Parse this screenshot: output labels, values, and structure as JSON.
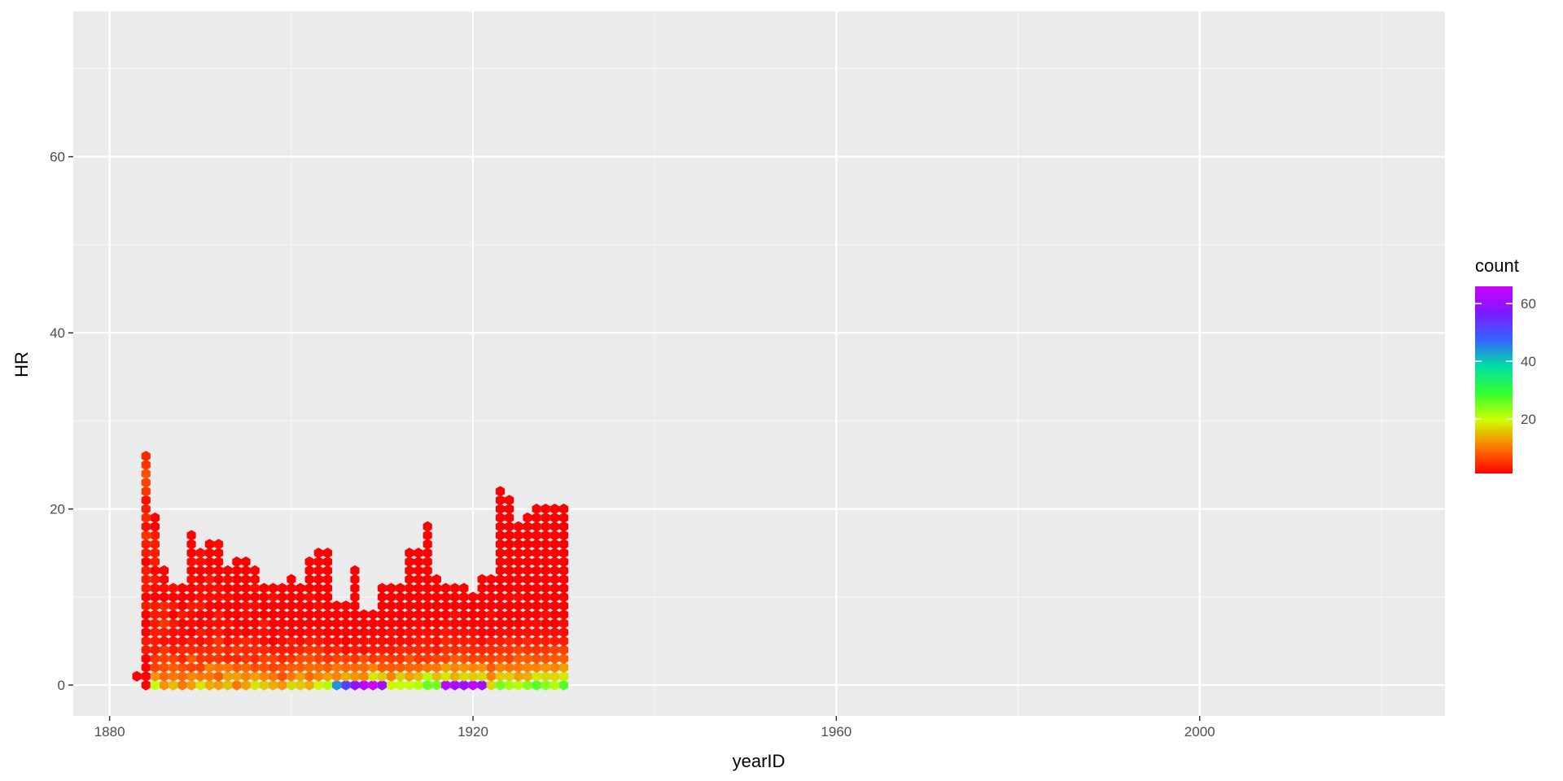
{
  "chart_data": {
    "type": "hexbin",
    "xlabel": "yearID",
    "ylabel": "HR",
    "xlim": [
      1876,
      2027
    ],
    "ylim": [
      -3.5,
      76.5
    ],
    "x_ticks": [
      1880,
      1920,
      1960,
      2000
    ],
    "y_ticks": [
      0,
      20,
      40,
      60
    ],
    "x_tick_labels": [
      "1880",
      "1920",
      "1960",
      "2000"
    ],
    "y_tick_labels": [
      "0",
      "20",
      "40",
      "60"
    ],
    "grid": true,
    "legend": {
      "title": "count",
      "position": "right",
      "range": [
        1,
        66
      ],
      "ticks": [
        20,
        40,
        60
      ],
      "tick_labels": [
        "20",
        "40",
        "60"
      ],
      "colors": [
        "#FF0000",
        "#FF7A00",
        "#CCFF00",
        "#33FF33",
        "#00E0A0",
        "#3366FF",
        "#7A1AFF",
        "#CC00FF"
      ]
    },
    "bins": {
      "x_start": 1883,
      "x_step": 1,
      "y_start": 0,
      "y_step": 1,
      "columns": [
        [
          0,
          1
        ],
        [
          1,
          1,
          1,
          1,
          3,
          3,
          1,
          1,
          1,
          3,
          1,
          3,
          3,
          3,
          1,
          3,
          3,
          5,
          2,
          4,
          3,
          2,
          5,
          6,
          7,
          5,
          4
        ],
        [
          20,
          12,
          6,
          5,
          3,
          3,
          3,
          3,
          3,
          3,
          1,
          2,
          3,
          1,
          3,
          3,
          3,
          3,
          1,
          1
        ],
        [
          12,
          9,
          7,
          6,
          5,
          2,
          3,
          5,
          3,
          4,
          1,
          2,
          1,
          1
        ],
        [
          15,
          10,
          8,
          6,
          3,
          2,
          2,
          3,
          1,
          3,
          1,
          2
        ],
        [
          10,
          9,
          7,
          4,
          4,
          2,
          2,
          1,
          3,
          1,
          1,
          1
        ],
        [
          13,
          11,
          6,
          8,
          4,
          3,
          1,
          2,
          2,
          3,
          1,
          1,
          2,
          1,
          2,
          1,
          1,
          1
        ],
        [
          18,
          10,
          6,
          5,
          4,
          2,
          3,
          1,
          1,
          3,
          2,
          2,
          1,
          1,
          2,
          2
        ],
        [
          14,
          10,
          11,
          5,
          4,
          3,
          2,
          2,
          1,
          1,
          2,
          2,
          3,
          1,
          1,
          1,
          1
        ],
        [
          13,
          8,
          10,
          5,
          5,
          5,
          3,
          2,
          3,
          1,
          2,
          2,
          1,
          1,
          1,
          1,
          2
        ],
        [
          15,
          13,
          10,
          4,
          4,
          2,
          1,
          2,
          1,
          1,
          2,
          1,
          2,
          1
        ],
        [
          10,
          13,
          8,
          4,
          5,
          3,
          2,
          1,
          1,
          1,
          1,
          1,
          1,
          1,
          1
        ],
        [
          13,
          11,
          9,
          5,
          4,
          4,
          1,
          1,
          2,
          2,
          1,
          1,
          1,
          1,
          1
        ],
        [
          18,
          13,
          7,
          4,
          4,
          3,
          2,
          1,
          1,
          2,
          1,
          2,
          1,
          1
        ],
        [
          16,
          11,
          7,
          6,
          4,
          2,
          2,
          3,
          1,
          1,
          1,
          1
        ],
        [
          14,
          10,
          6,
          6,
          3,
          1,
          1,
          1,
          1,
          1,
          2,
          1
        ],
        [
          12,
          7,
          7,
          4,
          3,
          2,
          2,
          1,
          1,
          1,
          1,
          1
        ],
        [
          17,
          10,
          8,
          5,
          3,
          3,
          1,
          1,
          1,
          1,
          1,
          1,
          1
        ],
        [
          16,
          13,
          8,
          7,
          4,
          2,
          1,
          1,
          1,
          1,
          1,
          1
        ],
        [
          14,
          9,
          9,
          7,
          5,
          3,
          2,
          1,
          1,
          1,
          2,
          1,
          1,
          1,
          1
        ],
        [
          19,
          11,
          9,
          6,
          5,
          3,
          2,
          1,
          1,
          2,
          1,
          1,
          1,
          1,
          1,
          1
        ],
        [
          21,
          13,
          8,
          5,
          3,
          2,
          1,
          1,
          1,
          1,
          1,
          1,
          1,
          1,
          1,
          1
        ],
        [
          44,
          11,
          10,
          6,
          4,
          2,
          1,
          1,
          1,
          1
        ],
        [
          52,
          14,
          9,
          6,
          2,
          1,
          1,
          1,
          1,
          1
        ],
        [
          59,
          12,
          9,
          5,
          3,
          2,
          1,
          1,
          1,
          1,
          1,
          1,
          1,
          1
        ],
        [
          64,
          11,
          9,
          7,
          2,
          2,
          1,
          1,
          1
        ],
        [
          66,
          18,
          11,
          5,
          3,
          2,
          1,
          1,
          1
        ],
        [
          61,
          16,
          8,
          6,
          3,
          2,
          1,
          1,
          1,
          1,
          1,
          1
        ],
        [
          19,
          11,
          8,
          5,
          3,
          2,
          2,
          1,
          1,
          1,
          1,
          1
        ],
        [
          20,
          16,
          8,
          5,
          4,
          2,
          1,
          1,
          1,
          1,
          1,
          1
        ],
        [
          20,
          13,
          9,
          7,
          4,
          2,
          2,
          1,
          1,
          1,
          1,
          1,
          1,
          1,
          1,
          1
        ],
        [
          21,
          15,
          9,
          5,
          4,
          3,
          2,
          2,
          1,
          1,
          1,
          1,
          1,
          1,
          1,
          1
        ],
        [
          26,
          21,
          10,
          5,
          4,
          3,
          2,
          1,
          1,
          1,
          1,
          1,
          1,
          1,
          1,
          1,
          1,
          1,
          1
        ],
        [
          25,
          15,
          10,
          6,
          3,
          2,
          2,
          1,
          1,
          1,
          1,
          1,
          1
        ],
        [
          64,
          18,
          13,
          6,
          5,
          4,
          3,
          2,
          1,
          1,
          1,
          1
        ],
        [
          62,
          14,
          11,
          8,
          4,
          3,
          2,
          1,
          2,
          1,
          1,
          1
        ],
        [
          60,
          17,
          12,
          7,
          5,
          3,
          2,
          1,
          1,
          1,
          1,
          1
        ],
        [
          65,
          16,
          11,
          6,
          4,
          3,
          2,
          1,
          1,
          1,
          1
        ],
        [
          61,
          17,
          12,
          6,
          4,
          2,
          1,
          1,
          1,
          1,
          1,
          1,
          1
        ],
        [
          17,
          11,
          8,
          6,
          4,
          3,
          1,
          1,
          2,
          1,
          1,
          1,
          1
        ],
        [
          25,
          16,
          11,
          7,
          5,
          3,
          2,
          1,
          1,
          1,
          1,
          1,
          1,
          1,
          1,
          1,
          1,
          1,
          1,
          1,
          1,
          1,
          1
        ],
        [
          22,
          16,
          10,
          6,
          5,
          4,
          2,
          1,
          1,
          1,
          2,
          1,
          1,
          1,
          1,
          1,
          1,
          1,
          1,
          1,
          1,
          1
        ],
        [
          21,
          13,
          10,
          8,
          6,
          3,
          2,
          1,
          1,
          1,
          2,
          1,
          1,
          1,
          1,
          1,
          1,
          1,
          1
        ],
        [
          24,
          14,
          11,
          8,
          5,
          4,
          2,
          2,
          1,
          1,
          1,
          1,
          1,
          1,
          1,
          1,
          1,
          1,
          1,
          1
        ],
        [
          27,
          18,
          11,
          7,
          5,
          3,
          2,
          2,
          1,
          1,
          1,
          1,
          1,
          1,
          1,
          1,
          1,
          1,
          1,
          1,
          1
        ],
        [
          24,
          17,
          12,
          7,
          5,
          3,
          2,
          1,
          2,
          1,
          1,
          1,
          1,
          1,
          1,
          1,
          1,
          1,
          1,
          1,
          1
        ],
        [
          21,
          17,
          11,
          8,
          6,
          3,
          2,
          1,
          1,
          1,
          1,
          1,
          1,
          1,
          1,
          1,
          1,
          1,
          1,
          1,
          1
        ],
        [
          27,
          18,
          13,
          8,
          6,
          3,
          2,
          2,
          1,
          1,
          1,
          1,
          1,
          1,
          1,
          1,
          1,
          1,
          1,
          1,
          1
        ]
      ]
    },
    "series": []
  }
}
